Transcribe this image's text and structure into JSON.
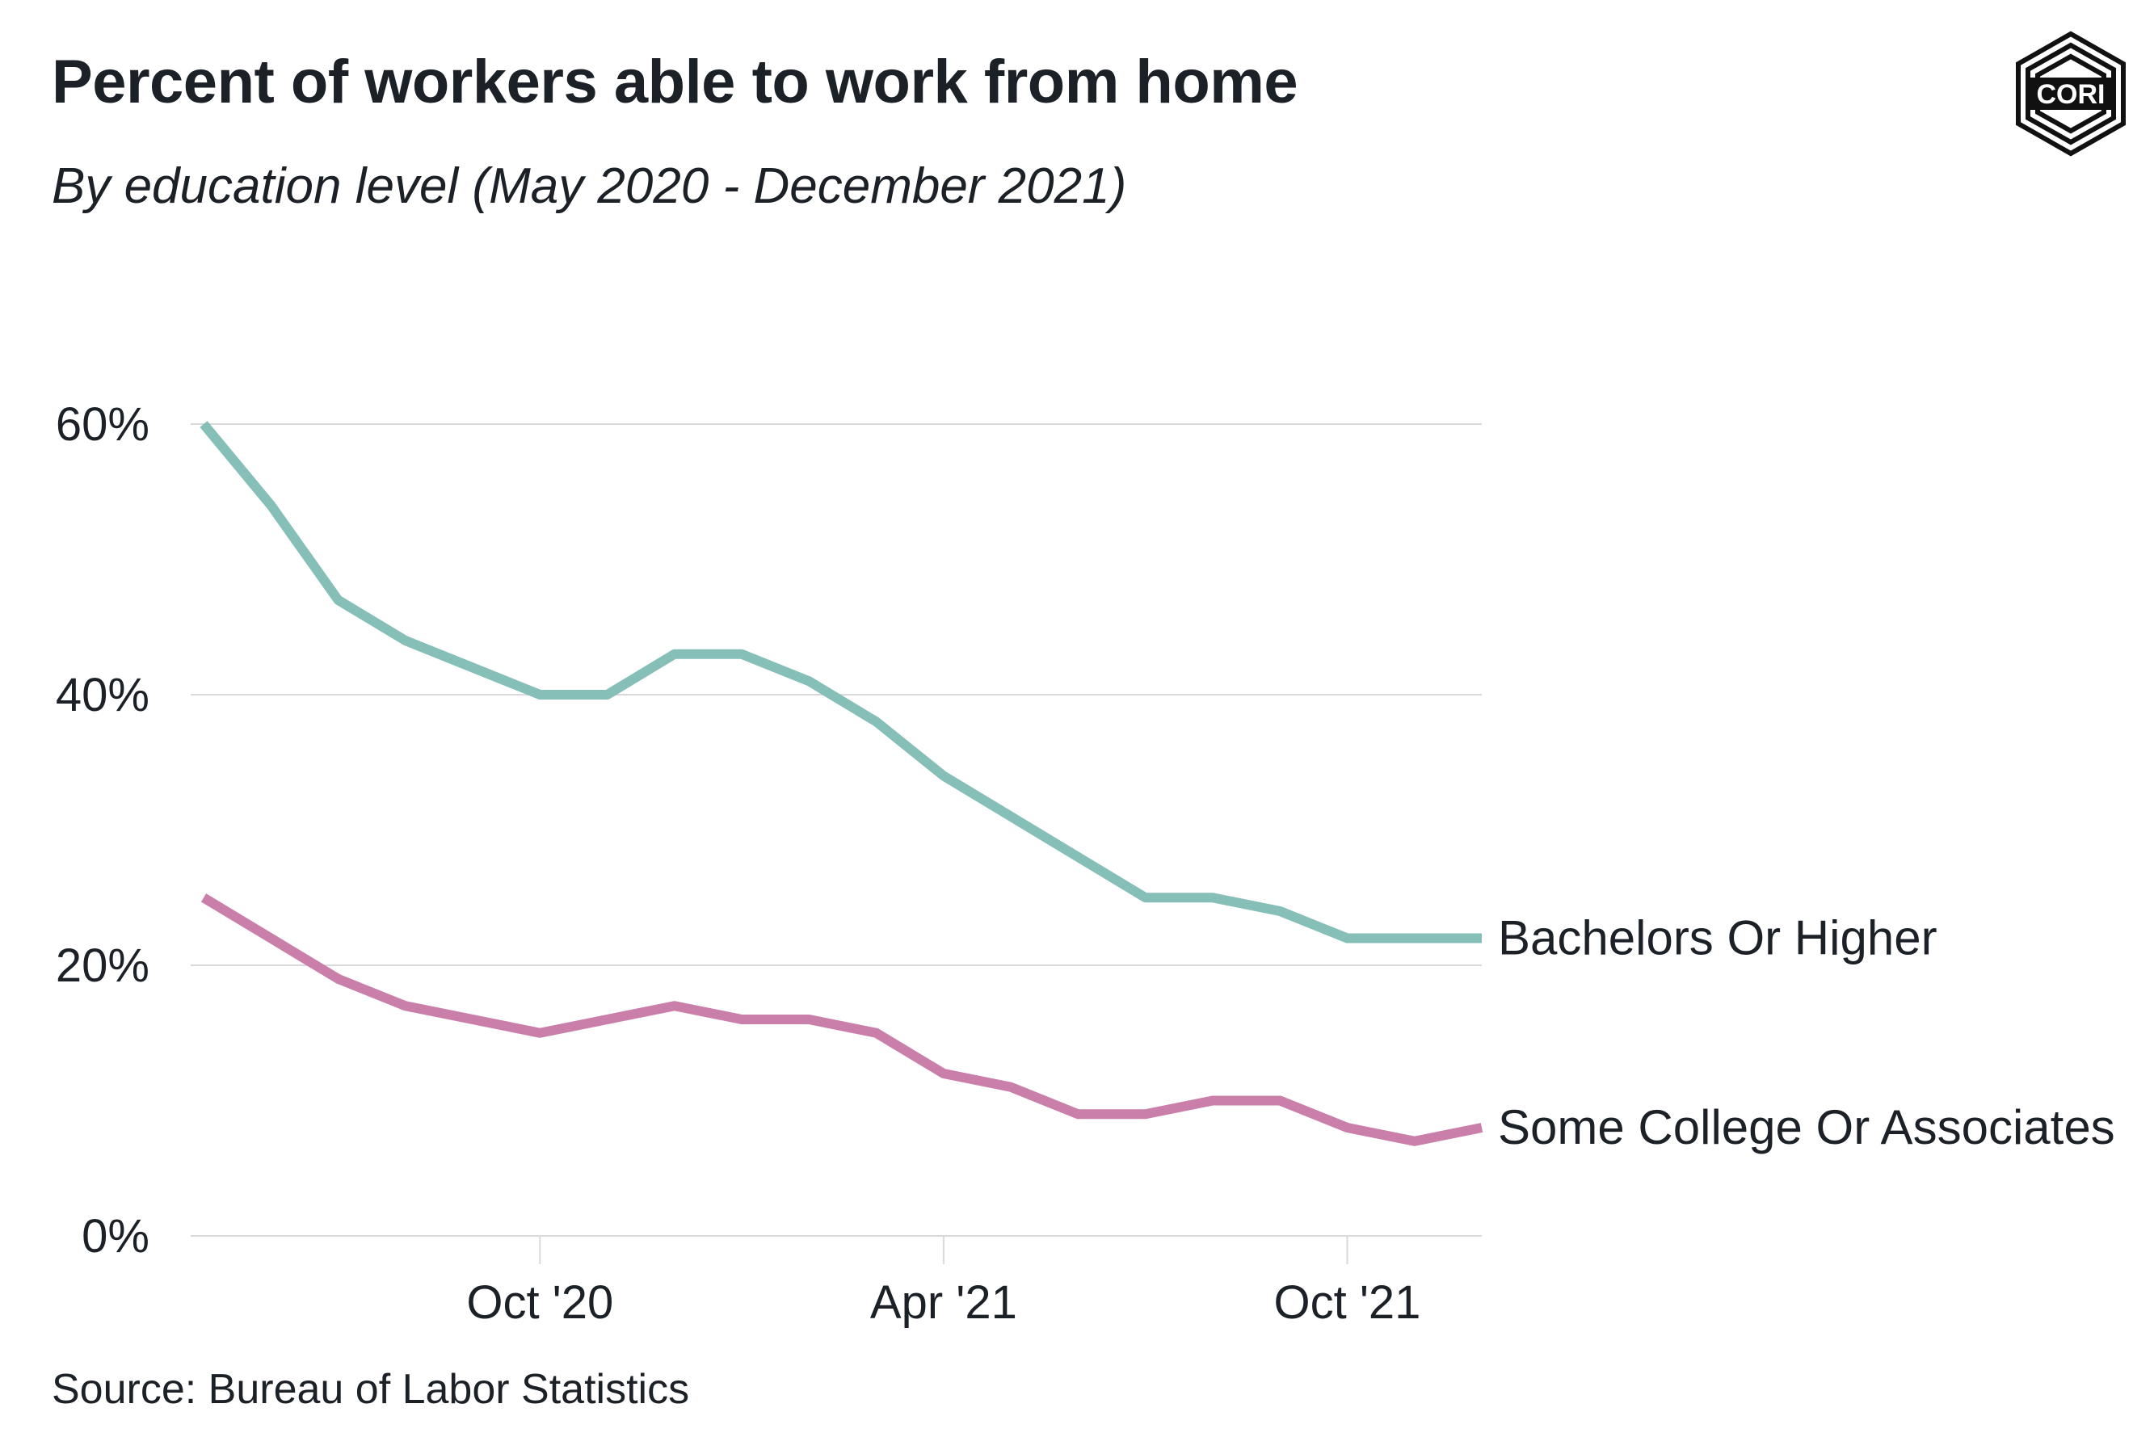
{
  "header": {
    "title": "Percent of workers able to work from home",
    "subtitle": "By education level (May 2020 - December 2021)"
  },
  "footer": {
    "source": "Source: Bureau of Labor Statistics"
  },
  "logo": {
    "text": "CORI",
    "icon": "cori-hexagon-logo"
  },
  "colors": {
    "bachelors": "#85bfb7",
    "some_college": "#c97fa9",
    "grid": "#d9d9d9",
    "text": "#1c2127"
  },
  "chart_data": {
    "type": "line",
    "title": "Percent of workers able to work from home",
    "subtitle": "By education level (May 2020 - December 2021)",
    "x": [
      "2020-05",
      "2020-06",
      "2020-07",
      "2020-08",
      "2020-09",
      "2020-10",
      "2020-11",
      "2020-12",
      "2021-01",
      "2021-02",
      "2021-03",
      "2021-04",
      "2021-05",
      "2021-06",
      "2021-07",
      "2021-08",
      "2021-09",
      "2021-10",
      "2021-11",
      "2021-12"
    ],
    "x_ticks": [
      {
        "value": "2020-10",
        "label": "Oct '20"
      },
      {
        "value": "2021-04",
        "label": "Apr '21"
      },
      {
        "value": "2021-10",
        "label": "Oct '21"
      }
    ],
    "y_ticks": [
      {
        "value": 0,
        "label": "0%"
      },
      {
        "value": 20,
        "label": "20%"
      },
      {
        "value": 40,
        "label": "40%"
      },
      {
        "value": 60,
        "label": "60%"
      }
    ],
    "ylim": [
      0,
      60
    ],
    "grid": true,
    "legend": "direct labels at line ends",
    "series": [
      {
        "name": "Bachelors Or Higher",
        "color": "#85bfb7",
        "values": [
          60,
          54,
          47,
          44,
          42,
          40,
          40,
          43,
          43,
          41,
          38,
          34,
          31,
          28,
          25,
          25,
          24,
          22,
          22,
          22
        ]
      },
      {
        "name": "Some College Or Associates",
        "color": "#c97fa9",
        "values": [
          25,
          22,
          19,
          17,
          16,
          15,
          16,
          17,
          16,
          16,
          15,
          12,
          11,
          9,
          9,
          10,
          10,
          8,
          7,
          8
        ]
      }
    ]
  }
}
